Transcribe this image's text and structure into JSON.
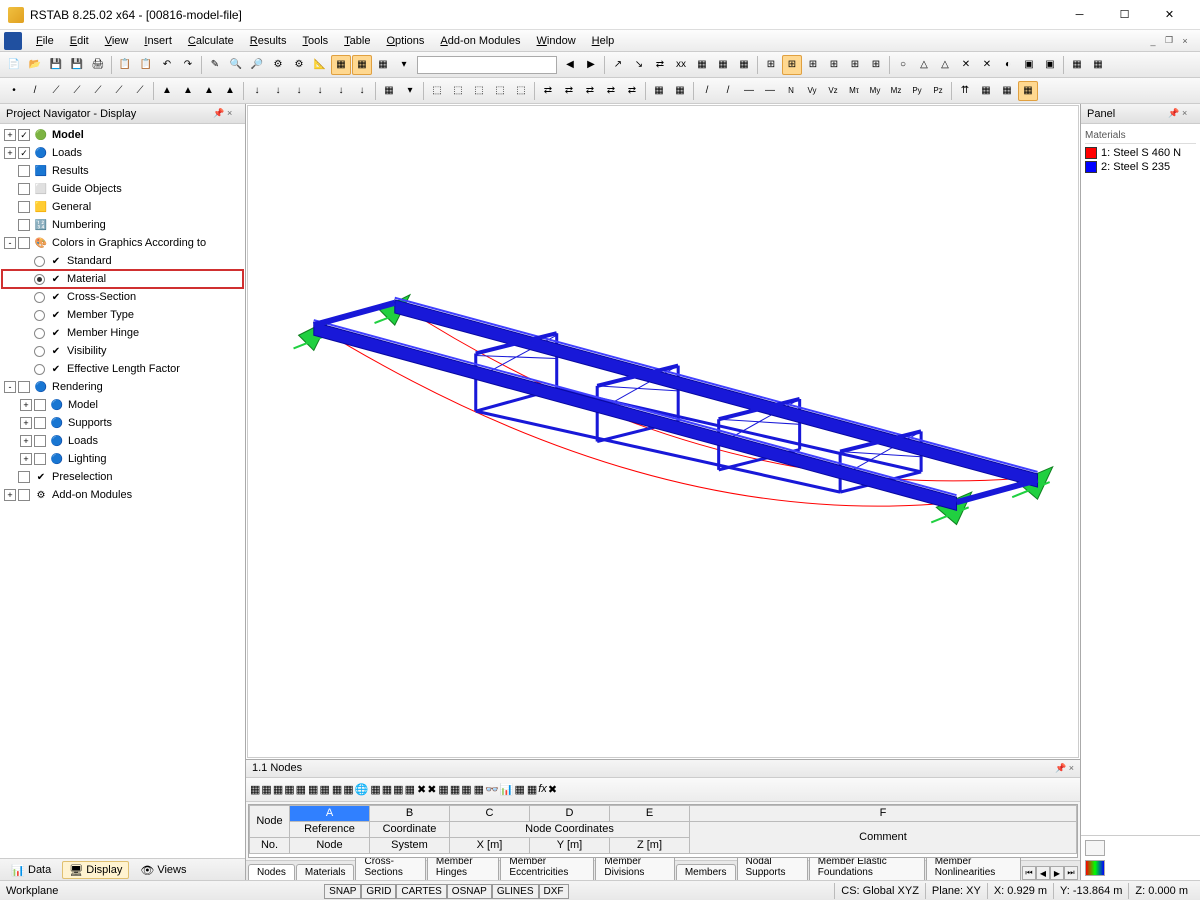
{
  "title": "RSTAB 8.25.02 x64 - [00816-model-file]",
  "menus": [
    "File",
    "Edit",
    "View",
    "Insert",
    "Calculate",
    "Results",
    "Tools",
    "Table",
    "Options",
    "Add-on Modules",
    "Window",
    "Help"
  ],
  "nav": {
    "title": "Project Navigator - Display",
    "items": [
      {
        "lvl": 0,
        "exp": "+",
        "chk": "✓",
        "icon": "🟢",
        "label": "Model",
        "bold": true
      },
      {
        "lvl": 0,
        "exp": "+",
        "chk": "✓",
        "icon": "🔵",
        "label": "Loads"
      },
      {
        "lvl": 0,
        "exp": "",
        "chk": "",
        "icon": "🟦",
        "label": "Results"
      },
      {
        "lvl": 0,
        "exp": "",
        "chk": "",
        "icon": "⬜",
        "label": "Guide Objects"
      },
      {
        "lvl": 0,
        "exp": "",
        "chk": "",
        "icon": "🟨",
        "label": "General"
      },
      {
        "lvl": 0,
        "exp": "",
        "chk": "",
        "icon": "🔢",
        "label": "Numbering"
      },
      {
        "lvl": 0,
        "exp": "-",
        "chk": "",
        "icon": "🎨",
        "label": "Colors in Graphics According to"
      },
      {
        "lvl": 1,
        "exp": "",
        "rad": false,
        "icon": "✔",
        "label": "Standard"
      },
      {
        "lvl": 1,
        "exp": "",
        "rad": true,
        "icon": "✔",
        "label": "Material",
        "hl": true
      },
      {
        "lvl": 1,
        "exp": "",
        "rad": false,
        "icon": "✔",
        "label": "Cross-Section"
      },
      {
        "lvl": 1,
        "exp": "",
        "rad": false,
        "icon": "✔",
        "label": "Member Type"
      },
      {
        "lvl": 1,
        "exp": "",
        "rad": false,
        "icon": "✔",
        "label": "Member Hinge"
      },
      {
        "lvl": 1,
        "exp": "",
        "rad": false,
        "icon": "✔",
        "label": "Visibility"
      },
      {
        "lvl": 1,
        "exp": "",
        "rad": false,
        "icon": "✔",
        "label": "Effective Length Factor"
      },
      {
        "lvl": 0,
        "exp": "-",
        "chk": "",
        "icon": "🔵",
        "label": "Rendering"
      },
      {
        "lvl": 1,
        "exp": "+",
        "chk": "",
        "icon": "🔵",
        "label": "Model"
      },
      {
        "lvl": 1,
        "exp": "+",
        "chk": "",
        "icon": "🔵",
        "label": "Supports"
      },
      {
        "lvl": 1,
        "exp": "+",
        "chk": "",
        "icon": "🔵",
        "label": "Loads"
      },
      {
        "lvl": 1,
        "exp": "+",
        "chk": "",
        "icon": "🔵",
        "label": "Lighting"
      },
      {
        "lvl": 0,
        "exp": "",
        "chk": "",
        "icon": "✔",
        "label": "Preselection"
      },
      {
        "lvl": 0,
        "exp": "+",
        "chk": "",
        "icon": "⚙",
        "label": "Add-on Modules"
      }
    ]
  },
  "panel": {
    "title": "Panel",
    "header": "Materials",
    "items": [
      {
        "color": "#ff0000",
        "label": "1: Steel S 460 N"
      },
      {
        "color": "#0000ff",
        "label": "2: Steel S 235"
      }
    ]
  },
  "nodes_title": "1.1 Nodes",
  "table": {
    "cols": [
      "A",
      "B",
      "C",
      "D",
      "E",
      "F"
    ],
    "hdr1": [
      "Node",
      "Reference",
      "Coordinate",
      "Node Coordinates",
      "",
      "",
      "",
      ""
    ],
    "hdr2": [
      "No.",
      "Node",
      "System",
      "X [m]",
      "Y [m]",
      "Z [m]",
      "Comment"
    ]
  },
  "data_tabs": [
    "Nodes",
    "Materials",
    "Cross-Sections",
    "Member Hinges",
    "Member Eccentricities",
    "Member Divisions",
    "Members",
    "Nodal Supports",
    "Member Elastic Foundations",
    "Member Nonlinearities"
  ],
  "bottom_tabs": [
    {
      "icon": "📊",
      "label": "Data"
    },
    {
      "icon": "🖥",
      "label": "Display"
    },
    {
      "icon": "👁",
      "label": "Views"
    }
  ],
  "status": {
    "left": "Workplane",
    "snap_btns": [
      "SNAP",
      "GRID",
      "CARTES",
      "OSNAP",
      "GLINES",
      "DXF"
    ],
    "cs": "CS: Global XYZ",
    "plane": "Plane: XY",
    "x": "X: 0.929 m",
    "y": "Y: -13.864 m",
    "z": "Z: 0.000 m"
  },
  "model": {
    "beam_color": "#1818d8",
    "cable_color": "#ff0000",
    "support_color": "#20d040",
    "bg": "#ffffff"
  }
}
